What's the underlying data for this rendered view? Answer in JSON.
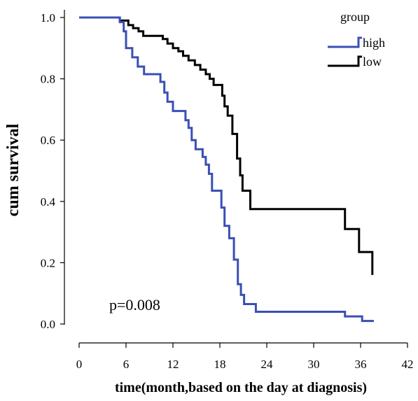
{
  "chart_data": {
    "type": "line",
    "step": true,
    "xlabel": "time(month,based on the day at diagnosis)",
    "ylabel": "cum survival",
    "xlim": [
      0,
      42
    ],
    "ylim": [
      0,
      1.0
    ],
    "xticks": [
      0,
      6,
      12,
      18,
      24,
      30,
      36,
      42
    ],
    "yticks": [
      0.0,
      0.2,
      0.4,
      0.6,
      0.8,
      1.0
    ],
    "xtick_labels": [
      "0",
      "6",
      "12",
      "18",
      "24",
      "30",
      "36",
      "42"
    ],
    "ytick_labels": [
      "0.0",
      "0.2",
      "0.4",
      "0.6",
      "0.8",
      "1.0"
    ],
    "grid": false,
    "legend": {
      "title": "group",
      "placement": "top-right"
    },
    "annotation": "p=0.008",
    "series": [
      {
        "name": "high",
        "color": "#3a4fb5",
        "points": [
          [
            0,
            1.0
          ],
          [
            5.2,
            1.0
          ],
          [
            5.2,
            0.985
          ],
          [
            5.7,
            0.985
          ],
          [
            5.7,
            0.955
          ],
          [
            6.0,
            0.955
          ],
          [
            6.0,
            0.9
          ],
          [
            6.8,
            0.9
          ],
          [
            6.8,
            0.87
          ],
          [
            7.5,
            0.87
          ],
          [
            7.5,
            0.84
          ],
          [
            8.3,
            0.84
          ],
          [
            8.3,
            0.815
          ],
          [
            10.4,
            0.815
          ],
          [
            10.4,
            0.79
          ],
          [
            10.9,
            0.79
          ],
          [
            10.9,
            0.755
          ],
          [
            11.3,
            0.755
          ],
          [
            11.3,
            0.725
          ],
          [
            12.0,
            0.725
          ],
          [
            12.0,
            0.695
          ],
          [
            13.6,
            0.695
          ],
          [
            13.6,
            0.665
          ],
          [
            14.0,
            0.665
          ],
          [
            14.0,
            0.64
          ],
          [
            14.4,
            0.64
          ],
          [
            14.4,
            0.6
          ],
          [
            14.9,
            0.6
          ],
          [
            14.9,
            0.57
          ],
          [
            15.8,
            0.57
          ],
          [
            15.8,
            0.545
          ],
          [
            16.2,
            0.545
          ],
          [
            16.2,
            0.52
          ],
          [
            16.6,
            0.52
          ],
          [
            16.6,
            0.49
          ],
          [
            17.0,
            0.49
          ],
          [
            17.0,
            0.435
          ],
          [
            18.2,
            0.435
          ],
          [
            18.2,
            0.38
          ],
          [
            18.6,
            0.38
          ],
          [
            18.6,
            0.32
          ],
          [
            19.2,
            0.32
          ],
          [
            19.2,
            0.28
          ],
          [
            19.8,
            0.28
          ],
          [
            19.8,
            0.21
          ],
          [
            20.3,
            0.21
          ],
          [
            20.3,
            0.13
          ],
          [
            20.7,
            0.13
          ],
          [
            20.7,
            0.095
          ],
          [
            21.1,
            0.095
          ],
          [
            21.1,
            0.065
          ],
          [
            22.6,
            0.065
          ],
          [
            22.6,
            0.04
          ],
          [
            34.0,
            0.04
          ],
          [
            34.0,
            0.025
          ],
          [
            36.2,
            0.025
          ],
          [
            36.2,
            0.01
          ],
          [
            37.7,
            0.01
          ]
        ]
      },
      {
        "name": "low",
        "color": "#000000",
        "points": [
          [
            0,
            1.0
          ],
          [
            5.2,
            1.0
          ],
          [
            5.2,
            0.99
          ],
          [
            6.3,
            0.99
          ],
          [
            6.3,
            0.975
          ],
          [
            6.9,
            0.975
          ],
          [
            6.9,
            0.965
          ],
          [
            7.6,
            0.965
          ],
          [
            7.6,
            0.955
          ],
          [
            8.2,
            0.955
          ],
          [
            8.2,
            0.94
          ],
          [
            10.7,
            0.94
          ],
          [
            10.7,
            0.93
          ],
          [
            11.3,
            0.93
          ],
          [
            11.3,
            0.915
          ],
          [
            12.0,
            0.915
          ],
          [
            12.0,
            0.9
          ],
          [
            12.7,
            0.9
          ],
          [
            12.7,
            0.89
          ],
          [
            13.3,
            0.89
          ],
          [
            13.3,
            0.875
          ],
          [
            14.0,
            0.875
          ],
          [
            14.0,
            0.86
          ],
          [
            14.8,
            0.86
          ],
          [
            14.8,
            0.845
          ],
          [
            15.5,
            0.845
          ],
          [
            15.5,
            0.83
          ],
          [
            16.2,
            0.83
          ],
          [
            16.2,
            0.815
          ],
          [
            16.7,
            0.815
          ],
          [
            16.7,
            0.8
          ],
          [
            17.2,
            0.8
          ],
          [
            17.2,
            0.78
          ],
          [
            18.3,
            0.78
          ],
          [
            18.3,
            0.745
          ],
          [
            18.6,
            0.745
          ],
          [
            18.6,
            0.71
          ],
          [
            19.0,
            0.71
          ],
          [
            19.0,
            0.68
          ],
          [
            19.6,
            0.68
          ],
          [
            19.6,
            0.62
          ],
          [
            20.2,
            0.62
          ],
          [
            20.2,
            0.54
          ],
          [
            20.6,
            0.54
          ],
          [
            20.6,
            0.485
          ],
          [
            20.9,
            0.485
          ],
          [
            20.9,
            0.435
          ],
          [
            21.9,
            0.435
          ],
          [
            21.9,
            0.375
          ],
          [
            34.0,
            0.375
          ],
          [
            34.0,
            0.31
          ],
          [
            35.8,
            0.31
          ],
          [
            35.8,
            0.235
          ],
          [
            37.5,
            0.235
          ],
          [
            37.5,
            0.16
          ]
        ]
      }
    ]
  }
}
